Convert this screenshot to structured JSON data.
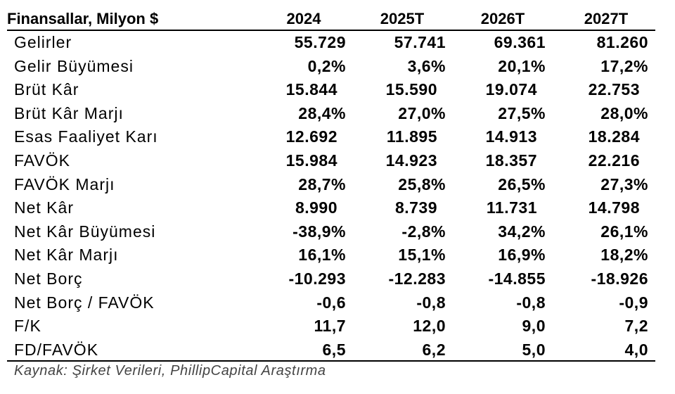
{
  "header": {
    "title": "Finansallar, Milyon $",
    "columns": [
      "2024",
      "2025T",
      "2026T",
      "2027T"
    ]
  },
  "table": {
    "rows": [
      [
        "Gelirler",
        "55.729",
        "57.741",
        "69.361",
        "81.260"
      ],
      [
        "Gelir Büyümesi",
        "0,2%",
        "3,6%",
        "20,1%",
        "17,2%"
      ],
      [
        "Brüt Kâr",
        "15.844",
        "15.590",
        "19.074",
        "22.753"
      ],
      [
        "Brüt Kâr Marjı",
        "28,4%",
        "27,0%",
        "27,5%",
        "28,0%"
      ],
      [
        "Esas Faaliyet Karı",
        "12.692",
        "11.895",
        "14.913",
        "18.284"
      ],
      [
        "FAVÖK",
        "15.984",
        "14.923",
        "18.357",
        "22.216"
      ],
      [
        "FAVÖK Marjı",
        "28,7%",
        "25,8%",
        "26,5%",
        "27,3%"
      ],
      [
        "Net Kâr",
        "8.990",
        "8.739",
        "11.731",
        "14.798"
      ],
      [
        "Net Kâr Büyümesi",
        "-38,9%",
        "-2,8%",
        "34,2%",
        "26,1%"
      ],
      [
        "Net Kâr Marjı",
        "16,1%",
        "15,1%",
        "16,9%",
        "18,2%"
      ],
      [
        "Net Borç",
        "-10.293",
        "-12.283",
        "-14.855",
        "-18.926"
      ],
      [
        "Net Borç / FAVÖK",
        "-0,6",
        "-0,8",
        "-0,8",
        "-0,9"
      ],
      [
        "F/K",
        "11,7",
        "12,0",
        "9,0",
        "7,2"
      ],
      [
        "FD/FAVÖK",
        "6,5",
        "6,2",
        "5,0",
        "4,0"
      ]
    ]
  },
  "source": "Kaynak: Şirket Verileri, PhillipCapital Araştırma"
}
